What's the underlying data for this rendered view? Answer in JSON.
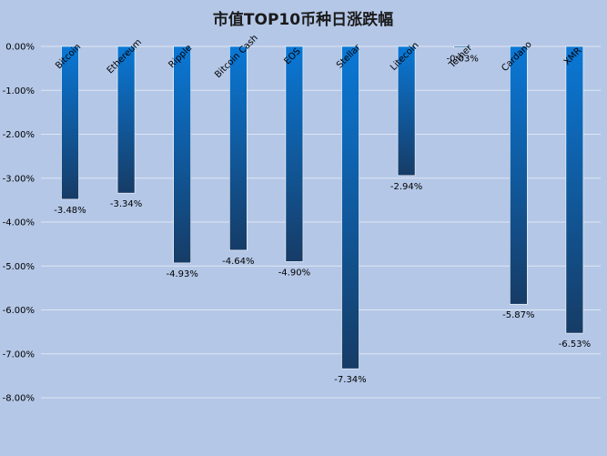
{
  "chart_data": {
    "type": "bar",
    "title": "市值TOP10币种日涨跌幅",
    "xlabel": "",
    "ylabel": "",
    "categories": [
      "Bitcoin",
      "Ethereum",
      "Ripple",
      "Bitcoin Cash",
      "EOS",
      "Stellar",
      "Litecoin",
      "Tether",
      "Cardano",
      "XMR"
    ],
    "values": [
      -3.48,
      -3.34,
      -4.93,
      -4.64,
      -4.9,
      -7.34,
      -2.94,
      -0.03,
      -5.87,
      -6.53
    ],
    "data_labels": [
      "-3.48%",
      "-3.34%",
      "-4.93%",
      "-4.64%",
      "-4.90%",
      "-7.34%",
      "-2.94%",
      "-0.03%",
      "-5.87%",
      "-6.53%"
    ],
    "ylim": [
      -8,
      0
    ],
    "yticks": [
      0,
      -1,
      -2,
      -3,
      -4,
      -5,
      -6,
      -7,
      -8
    ],
    "ytick_labels": [
      "0.00%",
      "-1.00%",
      "-2.00%",
      "-3.00%",
      "-4.00%",
      "-5.00%",
      "-6.00%",
      "-7.00%",
      "-8.00%"
    ],
    "grid": true,
    "legend": "none",
    "colors": {
      "background": "#b4c7e7",
      "bar_top": "#0a78d6",
      "bar_bottom": "#163c66",
      "grid": "#dfe6f2"
    }
  }
}
